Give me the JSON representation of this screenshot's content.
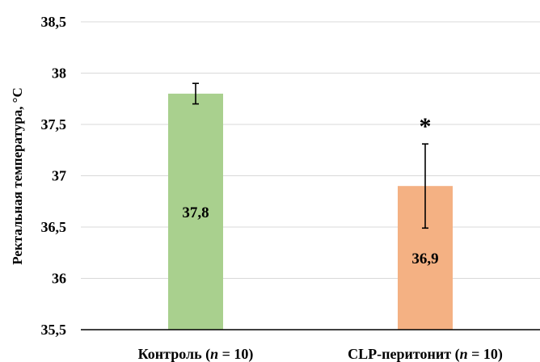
{
  "chart_data": {
    "type": "bar",
    "ylabel": "Ректальная температура, °С",
    "ylim": [
      35.5,
      38.5
    ],
    "yticks": [
      35.5,
      36,
      36.5,
      37,
      37.5,
      38,
      38.5
    ],
    "ytick_labels": [
      "35,5",
      "36",
      "36,5",
      "37",
      "37,5",
      "38",
      "38,5"
    ],
    "grid": true,
    "categories": [
      {
        "prefix": "Контроль (",
        "italic": "n",
        "suffix": " = 10)"
      },
      {
        "prefix": "CLP-перитонит (",
        "italic": "n",
        "suffix": " = 10)"
      }
    ],
    "values": [
      37.8,
      36.9
    ],
    "value_labels": [
      "37,8",
      "36,9"
    ],
    "errors": [
      0.1,
      0.41
    ],
    "colors": [
      "#a9d08e",
      "#f4b183"
    ],
    "annotations": [
      "",
      "*"
    ]
  }
}
